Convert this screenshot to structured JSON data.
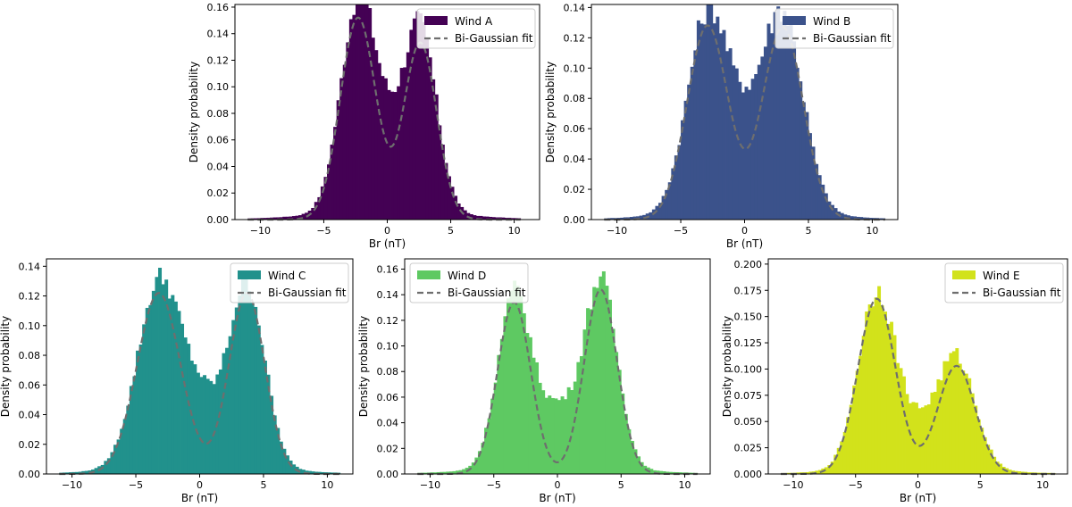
{
  "figure": {
    "x_axis_label": "Br (nT)",
    "y_axis_label": "Density probability",
    "fit_label": "Bi-Gaussian fit",
    "fit_color": "#6e6e6e"
  },
  "chart_data": [
    {
      "type": "histogram",
      "name": "Wind A",
      "color": "#440154",
      "xlabel": "Br (nT)",
      "ylabel": "Density probability",
      "xlim": [
        -12,
        12
      ],
      "ylim": [
        0,
        0.162
      ],
      "xticks": [
        -10,
        -5,
        0,
        5,
        10
      ],
      "yticks": [
        0.0,
        0.02,
        0.04,
        0.06,
        0.08,
        0.1,
        0.12,
        0.14,
        0.16
      ],
      "ytick_labels": [
        "0.00",
        "0.02",
        "0.04",
        "0.06",
        "0.08",
        "0.10",
        "0.12",
        "0.14",
        "0.16"
      ],
      "legend": [
        "Wind A",
        "Bi-Gaussian fit"
      ],
      "legend_position": "top-right",
      "fit": {
        "a1": 0.152,
        "mu1": -2.3,
        "s1": 1.4,
        "a2": 0.133,
        "mu2": 2.6,
        "s2": 1.3
      },
      "hist_range": [
        -11,
        10.5
      ],
      "noise_amp": 0.06
    },
    {
      "type": "histogram",
      "name": "Wind B",
      "color": "#3b528b",
      "xlabel": "Br (nT)",
      "ylabel": "Density probability",
      "xlim": [
        -12,
        12
      ],
      "ylim": [
        0,
        0.142
      ],
      "xticks": [
        -10,
        -5,
        0,
        5,
        10
      ],
      "yticks": [
        0.0,
        0.02,
        0.04,
        0.06,
        0.08,
        0.1,
        0.12,
        0.14
      ],
      "ytick_labels": [
        "0.00",
        "0.02",
        "0.04",
        "0.06",
        "0.08",
        "0.10",
        "0.12",
        "0.14"
      ],
      "legend": [
        "Wind B",
        "Bi-Gaussian fit"
      ],
      "legend_position": "top-right",
      "fit": {
        "a1": 0.128,
        "mu1": -2.9,
        "s1": 1.6,
        "a2": 0.127,
        "mu2": 3.0,
        "s2": 1.6
      },
      "hist_range": [
        -11,
        11
      ],
      "noise_amp": 0.07
    },
    {
      "type": "histogram",
      "name": "Wind C",
      "color": "#21918c",
      "xlabel": "Br (nT)",
      "ylabel": "Density probability",
      "xlim": [
        -12,
        12
      ],
      "ylim": [
        0,
        0.145
      ],
      "xticks": [
        -10,
        -5,
        0,
        5,
        10
      ],
      "yticks": [
        0.0,
        0.02,
        0.04,
        0.06,
        0.08,
        0.1,
        0.12,
        0.14
      ],
      "ytick_labels": [
        "0.00",
        "0.02",
        "0.04",
        "0.06",
        "0.08",
        "0.10",
        "0.12",
        "0.14"
      ],
      "legend": [
        "Wind C",
        "Bi-Gaussian fit"
      ],
      "legend_position": "top-right",
      "fit": {
        "a1": 0.122,
        "mu1": -3.2,
        "s1": 1.7,
        "a2": 0.122,
        "mu2": 3.7,
        "s2": 1.4
      },
      "hist_range": [
        -11,
        11
      ],
      "noise_amp": 0.06
    },
    {
      "type": "histogram",
      "name": "Wind D",
      "color": "#5ec962",
      "xlabel": "Br (nT)",
      "ylabel": "Density probability",
      "xlim": [
        -12,
        12
      ],
      "ylim": [
        0,
        0.168
      ],
      "xticks": [
        -10,
        -5,
        0,
        5,
        10
      ],
      "yticks": [
        0.0,
        0.02,
        0.04,
        0.06,
        0.08,
        0.1,
        0.12,
        0.14,
        0.16
      ],
      "ytick_labels": [
        "0.00",
        "0.02",
        "0.04",
        "0.06",
        "0.08",
        "0.10",
        "0.12",
        "0.14",
        "0.16"
      ],
      "legend": [
        "Wind D",
        "Bi-Gaussian fit"
      ],
      "legend_position": "top-left",
      "fit": {
        "a1": 0.134,
        "mu1": -3.4,
        "s1": 1.3,
        "a2": 0.144,
        "mu2": 3.4,
        "s2": 1.3
      },
      "hist_range": [
        -11,
        11
      ],
      "noise_amp": 0.06
    },
    {
      "type": "histogram",
      "name": "Wind E",
      "color": "#d2e21b",
      "xlabel": "Br (nT)",
      "ylabel": "Density probability",
      "xlim": [
        -12,
        12
      ],
      "ylim": [
        0,
        0.205
      ],
      "xticks": [
        -10,
        -5,
        0,
        5,
        10
      ],
      "yticks": [
        0.0,
        0.025,
        0.05,
        0.075,
        0.1,
        0.125,
        0.15,
        0.175,
        0.2
      ],
      "ytick_labels": [
        "0.000",
        "0.025",
        "0.050",
        "0.075",
        "0.100",
        "0.125",
        "0.150",
        "0.175",
        "0.200"
      ],
      "legend": [
        "Wind E",
        "Bi-Gaussian fit"
      ],
      "legend_position": "top-right",
      "fit": {
        "a1": 0.167,
        "mu1": -3.3,
        "s1": 1.5,
        "a2": 0.103,
        "mu2": 3.1,
        "s2": 1.5
      },
      "hist_range": [
        -11,
        11
      ],
      "noise_amp": 0.07
    }
  ]
}
